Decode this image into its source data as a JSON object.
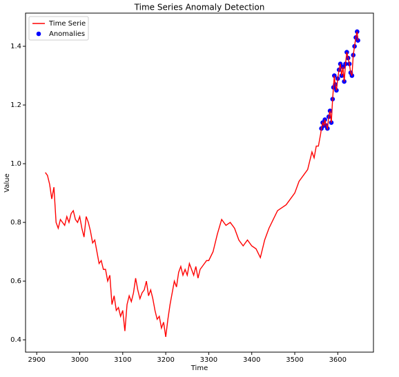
{
  "chart_data": {
    "type": "line",
    "title": "Time Series Anomaly Detection",
    "xlabel": "Time",
    "ylabel": "Value",
    "xlim": [
      2874,
      3683
    ],
    "ylim": [
      0.358,
      1.513
    ],
    "xticks": [
      2900,
      3000,
      3100,
      3200,
      3300,
      3400,
      3500,
      3600
    ],
    "yticks": [
      0.4,
      0.6,
      0.8,
      {
        "value": 1,
        "label": "1.0"
      },
      1.2,
      1.4
    ],
    "legend": "upper left",
    "series": [
      {
        "name": "Time Serie",
        "color": "#ff0000",
        "type": "line",
        "x": [
          2920,
          2925,
          2930,
          2935,
          2940,
          2945,
          2950,
          2955,
          2960,
          2965,
          2970,
          2975,
          2980,
          2985,
          2990,
          2995,
          3000,
          3005,
          3010,
          3015,
          3020,
          3025,
          3030,
          3035,
          3040,
          3045,
          3050,
          3055,
          3060,
          3065,
          3070,
          3075,
          3080,
          3085,
          3090,
          3095,
          3100,
          3105,
          3110,
          3115,
          3120,
          3125,
          3130,
          3135,
          3140,
          3145,
          3150,
          3155,
          3160,
          3165,
          3170,
          3175,
          3180,
          3185,
          3190,
          3195,
          3200,
          3205,
          3210,
          3215,
          3220,
          3225,
          3230,
          3235,
          3240,
          3245,
          3250,
          3255,
          3260,
          3265,
          3270,
          3275,
          3280,
          3285,
          3290,
          3295,
          3300,
          3310,
          3320,
          3330,
          3340,
          3350,
          3360,
          3370,
          3380,
          3390,
          3400,
          3410,
          3420,
          3430,
          3440,
          3450,
          3460,
          3470,
          3480,
          3490,
          3500,
          3510,
          3520,
          3530,
          3540,
          3545,
          3550,
          3555,
          3560,
          3562,
          3565,
          3568,
          3570,
          3573,
          3576,
          3579,
          3582,
          3585,
          3588,
          3590,
          3592,
          3594,
          3597,
          3600,
          3603,
          3606,
          3609,
          3612,
          3615,
          3618,
          3621,
          3624,
          3627,
          3630,
          3633,
          3636,
          3639,
          3642,
          3645,
          3647
        ],
        "values": [
          0.97,
          0.96,
          0.93,
          0.88,
          0.92,
          0.8,
          0.78,
          0.81,
          0.8,
          0.79,
          0.82,
          0.8,
          0.83,
          0.84,
          0.81,
          0.8,
          0.82,
          0.78,
          0.75,
          0.82,
          0.8,
          0.77,
          0.73,
          0.74,
          0.7,
          0.66,
          0.67,
          0.64,
          0.64,
          0.6,
          0.62,
          0.52,
          0.55,
          0.5,
          0.51,
          0.48,
          0.5,
          0.43,
          0.52,
          0.55,
          0.53,
          0.56,
          0.61,
          0.57,
          0.54,
          0.56,
          0.57,
          0.6,
          0.55,
          0.57,
          0.54,
          0.5,
          0.47,
          0.48,
          0.44,
          0.46,
          0.41,
          0.47,
          0.52,
          0.56,
          0.6,
          0.58,
          0.63,
          0.65,
          0.62,
          0.64,
          0.62,
          0.66,
          0.64,
          0.62,
          0.65,
          0.61,
          0.64,
          0.65,
          0.66,
          0.67,
          0.67,
          0.7,
          0.76,
          0.81,
          0.79,
          0.8,
          0.78,
          0.74,
          0.72,
          0.74,
          0.72,
          0.71,
          0.68,
          0.74,
          0.78,
          0.81,
          0.84,
          0.85,
          0.86,
          0.88,
          0.9,
          0.94,
          0.96,
          0.98,
          1.04,
          1.02,
          1.06,
          1.06,
          1.1,
          1.12,
          1.14,
          1.13,
          1.15,
          1.13,
          1.12,
          1.16,
          1.18,
          1.14,
          1.22,
          1.26,
          1.3,
          1.27,
          1.25,
          1.29,
          1.32,
          1.34,
          1.3,
          1.33,
          1.28,
          1.34,
          1.38,
          1.36,
          1.34,
          1.31,
          1.3,
          1.37,
          1.4,
          1.43,
          1.45,
          1.42
        ]
      },
      {
        "name": "Anomalies",
        "color": "#0000ff",
        "type": "scatter",
        "x": [
          3562,
          3565,
          3568,
          3570,
          3573,
          3576,
          3579,
          3582,
          3585,
          3588,
          3590,
          3592,
          3594,
          3597,
          3600,
          3603,
          3606,
          3609,
          3612,
          3615,
          3618,
          3621,
          3624,
          3627,
          3630,
          3633,
          3636,
          3639,
          3642,
          3645,
          3647
        ],
        "values": [
          1.12,
          1.14,
          1.13,
          1.15,
          1.13,
          1.12,
          1.16,
          1.18,
          1.14,
          1.22,
          1.26,
          1.3,
          1.27,
          1.25,
          1.29,
          1.32,
          1.34,
          1.3,
          1.33,
          1.28,
          1.34,
          1.38,
          1.36,
          1.34,
          1.31,
          1.3,
          1.37,
          1.4,
          1.43,
          1.45,
          1.42
        ]
      }
    ]
  }
}
